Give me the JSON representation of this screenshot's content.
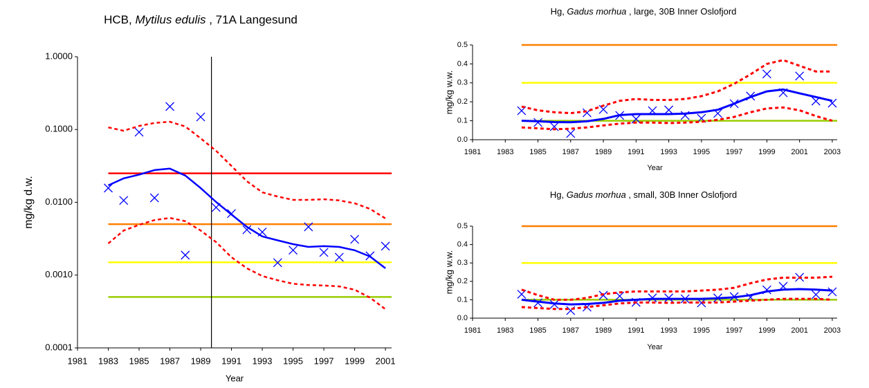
{
  "chart_data": [
    {
      "type": "line",
      "title": [
        "HCB, ",
        "Mytilus edulis",
        " , 71A  Langesund"
      ],
      "x_label": "Year",
      "y_label": "mg/kg d.w.",
      "log_y": true,
      "xlim": [
        1981,
        2001.4
      ],
      "ylim": [
        0.0001,
        1
      ],
      "xticks": [
        1981,
        1983,
        1985,
        1987,
        1989,
        1991,
        1993,
        1995,
        1997,
        1999,
        2001
      ],
      "yticks": [
        {
          "value": 0.0001,
          "label": "0.0001"
        },
        {
          "value": 0.001,
          "label": "0.0010"
        },
        {
          "value": 0.01,
          "label": "0.0100"
        },
        {
          "value": 0.1,
          "label": "0.1000"
        },
        {
          "value": 1,
          "label": "1.0000"
        }
      ],
      "vline": 1989.7,
      "hlines": [
        {
          "value": 0.025,
          "color": "#ff0000"
        },
        {
          "value": 0.005,
          "color": "#ff7f00"
        },
        {
          "value": 0.0015,
          "color": "#ffff00"
        },
        {
          "value": 0.0005,
          "color": "#99cc00"
        }
      ],
      "x": [
        1983,
        1984,
        1985,
        1986,
        1987,
        1988,
        1989,
        1990,
        1991,
        1992,
        1993,
        1994,
        1995,
        1996,
        1997,
        1998,
        1999,
        2000,
        2001
      ],
      "series": [
        {
          "style": "marker",
          "color": "#0000ff",
          "values": [
            0.0157,
            0.0106,
            0.092,
            0.0115,
            0.207,
            0.00188,
            0.149,
            0.0085,
            0.007,
            0.0042,
            0.0039,
            0.00148,
            0.0022,
            0.0046,
            0.00205,
            0.00176,
            0.0031,
            0.00184,
            0.0025
          ]
        },
        {
          "style": "solid",
          "color": "#0000ff",
          "values": [
            0.0171,
            0.0213,
            0.024,
            0.0277,
            0.029,
            0.0233,
            0.0157,
            0.0101,
            0.0068,
            0.0046,
            0.0034,
            0.003,
            0.00266,
            0.00244,
            0.0025,
            0.00244,
            0.00219,
            0.0018,
            0.00124
          ]
        },
        {
          "style": "dashed",
          "color": "#ff0000",
          "values": [
            0.107,
            0.096,
            0.112,
            0.123,
            0.128,
            0.11,
            0.0757,
            0.051,
            0.0316,
            0.0195,
            0.0137,
            0.012,
            0.0108,
            0.0108,
            0.011,
            0.0106,
            0.0097,
            0.0081,
            0.006
          ]
        },
        {
          "style": "dashed",
          "color": "#ff0000",
          "values": [
            0.00272,
            0.0041,
            0.0049,
            0.0057,
            0.0061,
            0.0055,
            0.0041,
            0.00284,
            0.00176,
            0.00124,
            0.00097,
            0.00085,
            0.00076,
            0.00073,
            0.00072,
            0.0007,
            0.00063,
            0.00049,
            0.00034
          ]
        }
      ]
    },
    {
      "type": "line",
      "title": [
        "Hg, ",
        "Gadus morhua",
        " , large, 30B  Inner Oslofjord"
      ],
      "x_label": "Year",
      "y_label": "mg/kg w.w.",
      "log_y": false,
      "xlim": [
        1981,
        2003.3
      ],
      "ylim": [
        0,
        0.5
      ],
      "xticks": [
        1981,
        1983,
        1985,
        1987,
        1989,
        1991,
        1993,
        1995,
        1997,
        1999,
        2001,
        2003
      ],
      "yticks": [
        {
          "value": 0,
          "label": "0.0"
        },
        0.1,
        0.2,
        0.3,
        0.4,
        0.5
      ],
      "hlines": [
        {
          "value": 0.5,
          "color": "#ff7f00"
        },
        {
          "value": 0.3,
          "color": "#ffff00"
        },
        {
          "value": 0.1,
          "color": "#99cc00"
        }
      ],
      "x": [
        1984,
        1985,
        1986,
        1987,
        1988,
        1989,
        1990,
        1991,
        1992,
        1993,
        1994,
        1995,
        1996,
        1997,
        1998,
        1999,
        2000,
        2001,
        2002,
        2003
      ],
      "series": [
        {
          "style": "marker",
          "color": "#0000ff",
          "values": [
            0.153,
            0.091,
            0.069,
            0.033,
            0.142,
            0.16,
            0.128,
            0.109,
            0.153,
            0.157,
            0.128,
            0.113,
            0.139,
            0.19,
            0.23,
            0.347,
            0.248,
            0.336,
            0.204,
            0.193
          ]
        },
        {
          "style": "solid",
          "color": "#0000ff",
          "values": [
            0.1,
            0.097,
            0.093,
            0.092,
            0.097,
            0.11,
            0.13,
            0.135,
            0.135,
            0.135,
            0.138,
            0.145,
            0.158,
            0.19,
            0.225,
            0.255,
            0.265,
            0.245,
            0.225,
            0.205
          ]
        },
        {
          "style": "dashed",
          "color": "#ff0000",
          "values": [
            0.175,
            0.155,
            0.145,
            0.14,
            0.15,
            0.18,
            0.205,
            0.215,
            0.21,
            0.21,
            0.215,
            0.23,
            0.255,
            0.295,
            0.345,
            0.4,
            0.42,
            0.39,
            0.36,
            0.36
          ]
        },
        {
          "style": "dashed",
          "color": "#ff0000",
          "values": [
            0.065,
            0.06,
            0.055,
            0.058,
            0.065,
            0.075,
            0.085,
            0.09,
            0.09,
            0.088,
            0.09,
            0.095,
            0.105,
            0.12,
            0.145,
            0.165,
            0.17,
            0.155,
            0.125,
            0.1
          ]
        }
      ]
    },
    {
      "type": "line",
      "title": [
        "Hg, ",
        "Gadus morhua",
        " , small, 30B  Inner Oslofjord"
      ],
      "x_label": "Year",
      "y_label": "mg/kg w.w.",
      "log_y": false,
      "xlim": [
        1981,
        2003.3
      ],
      "ylim": [
        0,
        0.5
      ],
      "xticks": [
        1981,
        1983,
        1985,
        1987,
        1989,
        1991,
        1993,
        1995,
        1997,
        1999,
        2001,
        2003
      ],
      "yticks": [
        {
          "value": 0,
          "label": "0.0"
        },
        0.1,
        0.2,
        0.3,
        0.4,
        0.5
      ],
      "hlines": [
        {
          "value": 0.5,
          "color": "#ff7f00"
        },
        {
          "value": 0.3,
          "color": "#ffff00"
        },
        {
          "value": 0.1,
          "color": "#99cc00"
        }
      ],
      "x": [
        1984,
        1985,
        1986,
        1987,
        1988,
        1989,
        1990,
        1991,
        1992,
        1993,
        1994,
        1995,
        1996,
        1997,
        1998,
        1999,
        2000,
        2001,
        2002,
        2003
      ],
      "series": [
        {
          "style": "marker",
          "color": "#0000ff",
          "values": [
            0.13,
            0.083,
            0.075,
            0.041,
            0.06,
            0.124,
            0.12,
            0.086,
            0.11,
            0.11,
            0.105,
            0.083,
            0.11,
            0.117,
            0.113,
            0.154,
            0.173,
            0.222,
            0.128,
            0.143
          ]
        },
        {
          "style": "solid",
          "color": "#0000ff",
          "values": [
            0.1,
            0.09,
            0.08,
            0.075,
            0.077,
            0.083,
            0.095,
            0.1,
            0.105,
            0.105,
            0.105,
            0.105,
            0.108,
            0.113,
            0.125,
            0.145,
            0.155,
            0.158,
            0.155,
            0.15
          ]
        },
        {
          "style": "dashed",
          "color": "#ff0000",
          "values": [
            0.155,
            0.125,
            0.1,
            0.1,
            0.11,
            0.13,
            0.14,
            0.145,
            0.145,
            0.145,
            0.145,
            0.15,
            0.155,
            0.165,
            0.19,
            0.21,
            0.22,
            0.22,
            0.22,
            0.225
          ]
        },
        {
          "style": "dashed",
          "color": "#ff0000",
          "values": [
            0.06,
            0.055,
            0.05,
            0.05,
            0.06,
            0.07,
            0.08,
            0.085,
            0.085,
            0.083,
            0.085,
            0.085,
            0.085,
            0.09,
            0.095,
            0.1,
            0.105,
            0.105,
            0.105,
            0.1
          ]
        }
      ]
    }
  ]
}
